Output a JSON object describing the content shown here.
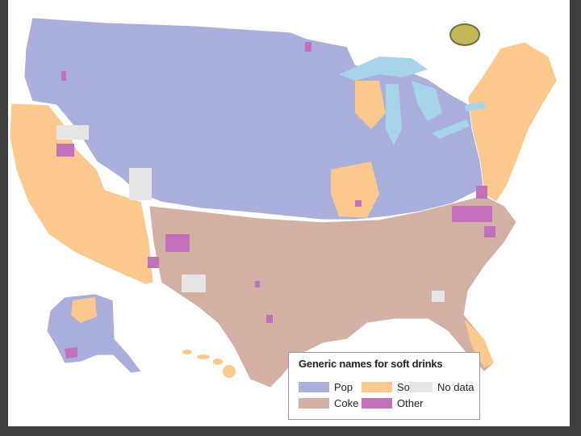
{
  "map": {
    "legend": {
      "title": "Generic names for soft drinks",
      "items": [
        {
          "label": "Pop",
          "color": "#a9aedb"
        },
        {
          "label": "Soda",
          "color": "#fbc98d"
        },
        {
          "label": "No data",
          "color": "#e5e5e5"
        },
        {
          "label": "Coke",
          "color": "#d3b0a4"
        },
        {
          "label": "Other",
          "color": "#c170b9"
        }
      ]
    },
    "colors": {
      "pop": "#a9aedb",
      "soda": "#fbc98d",
      "coke": "#d3b0a4",
      "other": "#c170b9",
      "nodata": "#e5e5e5",
      "water": "#a8d4ea",
      "border": "#ffffff"
    }
  }
}
